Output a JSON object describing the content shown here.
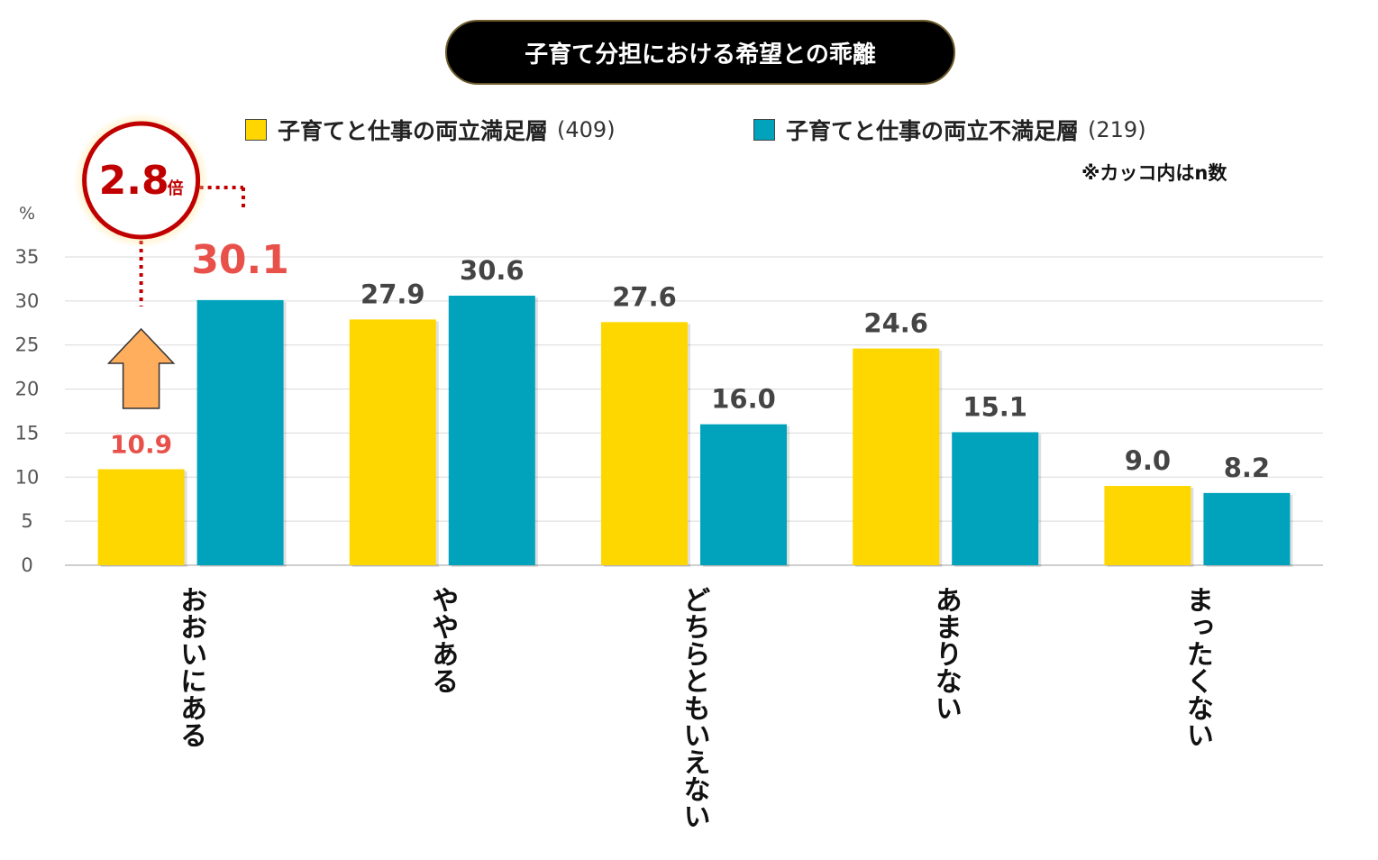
{
  "title": "子育て分担における希望との乖離",
  "legend": [
    {
      "label": "子育てと仕事の両立満足層",
      "n": "(409)",
      "color": "#FFD700"
    },
    {
      "label": "子育てと仕事の両立不満足層",
      "n": "(219)",
      "color": "#00A3BB"
    }
  ],
  "note": "※カッコ内はn数",
  "callout": {
    "value": "2.8",
    "unit": "倍",
    "color": "#C00000"
  },
  "highlight_color": "#E8504A",
  "chart_data": {
    "type": "bar",
    "categories": [
      "おおいにある",
      "ややある",
      "どちらともいえない",
      "あまりない",
      "まったくない"
    ],
    "series": [
      {
        "name": "子育てと仕事の両立満足層",
        "values": [
          10.9,
          27.9,
          27.6,
          24.6,
          9.0
        ]
      },
      {
        "name": "子育てと仕事の両立不満足層",
        "values": [
          30.1,
          30.6,
          16.0,
          15.1,
          8.2
        ]
      }
    ],
    "value_labels": [
      [
        "10.9",
        "27.9",
        "27.6",
        "24.6",
        "9.0"
      ],
      [
        "30.1",
        "30.6",
        "16.0",
        "15.1",
        "8.2"
      ]
    ],
    "ylabel": "%",
    "ylim": [
      0,
      35
    ],
    "yticks": [
      "0",
      "5",
      "10",
      "15",
      "20",
      "25",
      "30",
      "35"
    ],
    "grid": true
  }
}
